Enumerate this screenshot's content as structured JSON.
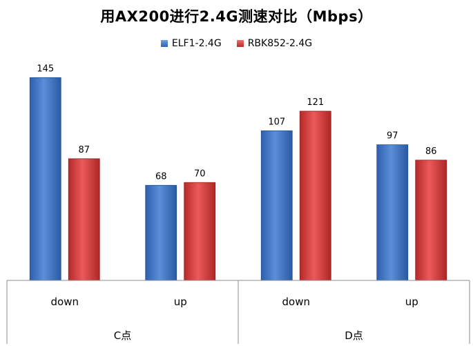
{
  "chart_data": {
    "type": "bar",
    "title": "用AX200进行2.4G测速对比（Mbps）",
    "groups": [
      {
        "label": "C点",
        "categories": [
          "down",
          "up"
        ]
      },
      {
        "label": "D点",
        "categories": [
          "down",
          "up"
        ]
      }
    ],
    "categories": [
      "down",
      "up",
      "down",
      "up"
    ],
    "series": [
      {
        "name": "ELF1-2.4G",
        "color": "#3A75C4",
        "values": [
          145,
          68,
          107,
          97
        ]
      },
      {
        "name": "RBK852-2.4G",
        "color": "#D63A3A",
        "values": [
          87,
          70,
          121,
          86
        ]
      }
    ],
    "ylim": [
      0,
      160
    ],
    "legend_position": "top",
    "grid": false
  }
}
